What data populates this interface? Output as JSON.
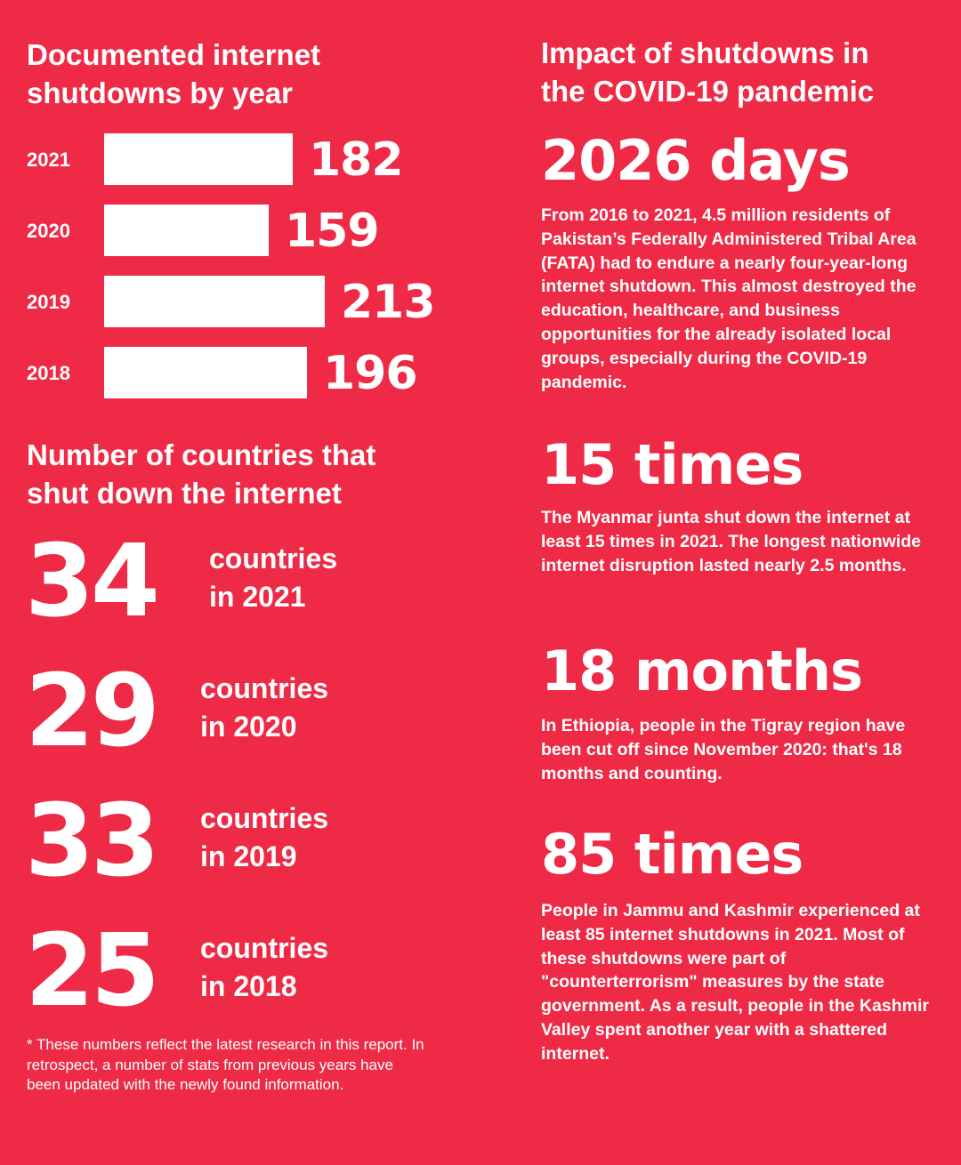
{
  "colors": {
    "background": "#ee2a46",
    "foreground": "#ffffff"
  },
  "left": {
    "chart_title_line1": "Documented internet",
    "chart_title_line2": "shutdowns by year",
    "countries_title_line1": "Number of countries that",
    "countries_title_line2": "shut down the internet",
    "countries": [
      {
        "number": "34",
        "line1": "countries",
        "line2": "in 2021"
      },
      {
        "number": "29",
        "line1": "countries",
        "line2": "in 2020"
      },
      {
        "number": "33",
        "line1": "countries",
        "line2": "in 2019"
      },
      {
        "number": "25",
        "line1": "countries",
        "line2": "in 2018"
      }
    ],
    "footnote": "* These numbers reflect the latest research in this report. In retrospect, a number of stats from previous years have been updated with the newly found information."
  },
  "chart_data": {
    "type": "bar",
    "orientation": "horizontal",
    "title": "Documented internet shutdowns by year",
    "categories": [
      "2021",
      "2020",
      "2019",
      "2018"
    ],
    "values": [
      182,
      159,
      213,
      196
    ],
    "data_labels": true,
    "grid": false
  },
  "right": {
    "title_line1": "Impact of shutdowns in",
    "title_line2": "the COVID-19 pandemic",
    "stats": [
      {
        "headline": "2026 days",
        "text": "From 2016 to 2021, 4.5 million residents of Pakistan’s Federally Administered Tribal Area (FATA) had to endure a nearly four-year-long internet shutdown. This almost destroyed the education, healthcare, and business opportunities for the already isolated local groups, especially during the COVID-19 pandemic."
      },
      {
        "headline": "15 times",
        "text": "The Myanmar junta shut down the internet at least 15 times in 2021. The longest nationwide internet disruption lasted nearly 2.5 months."
      },
      {
        "headline": "18 months",
        "text": "In Ethiopia, people in the Tigray region have been cut off since November 2020: that's 18 months and counting."
      },
      {
        "headline": "85 times",
        "text": "People in Jammu and Kashmir experienced at least 85 internet shutdowns in 2021. Most of these shutdowns were part of \"counterterrorism\" measures by the state government. As a result, people in the Kashmir Valley spent another year with a shattered internet."
      }
    ]
  }
}
